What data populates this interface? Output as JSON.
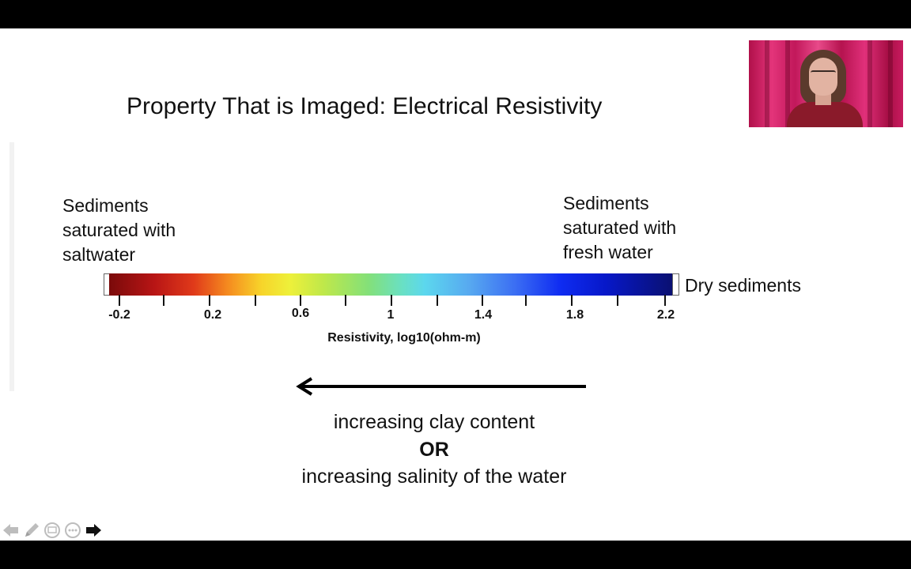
{
  "slide": {
    "title": "Property That is Imaged: Electrical Resistivity",
    "left_description": [
      "Sediments",
      "saturated with",
      "saltwater"
    ],
    "right_description": [
      "Sediments",
      "saturated with",
      "fresh water"
    ],
    "end_label": "Dry sediments",
    "colorbar": {
      "tick_labels": [
        "-0.2",
        "0.2",
        "0.6",
        "1",
        "1.4",
        "1.8",
        "2.2"
      ],
      "axis_label": "Resistivity, log10(ohm-m)",
      "colormap": "jet"
    },
    "trend": {
      "line1": "increasing clay content",
      "line2": "OR",
      "line3": "increasing salinity of the water",
      "arrow_direction": "left"
    }
  },
  "player_controls": {
    "icons": [
      "back-arrow-icon",
      "pen-icon",
      "slides-icon",
      "more-icon",
      "forward-arrow-icon"
    ]
  },
  "colors": {
    "background": "#ffffff",
    "letterbox": "#000000",
    "text": "#111111"
  }
}
